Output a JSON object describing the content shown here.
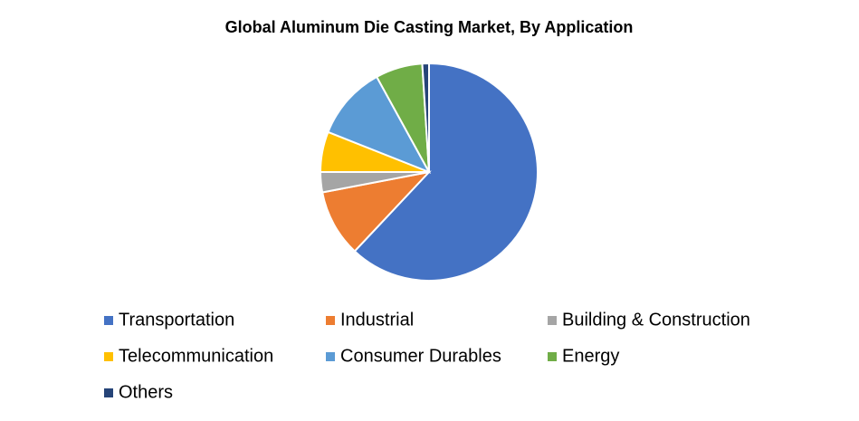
{
  "chart_data": {
    "type": "pie",
    "title": "Global Aluminum Die Casting Market, By Application",
    "categories": [
      "Transportation",
      "Industrial",
      "Building & Construction",
      "Telecommunication",
      "Consumer Durables",
      "Energy",
      "Others"
    ],
    "values": [
      62,
      10,
      3,
      6,
      11,
      7,
      1
    ],
    "colors": [
      "#4472c4",
      "#ed7d31",
      "#a5a5a5",
      "#ffc000",
      "#5b9bd5",
      "#70ad47",
      "#264478"
    ],
    "legend": "bottom"
  }
}
